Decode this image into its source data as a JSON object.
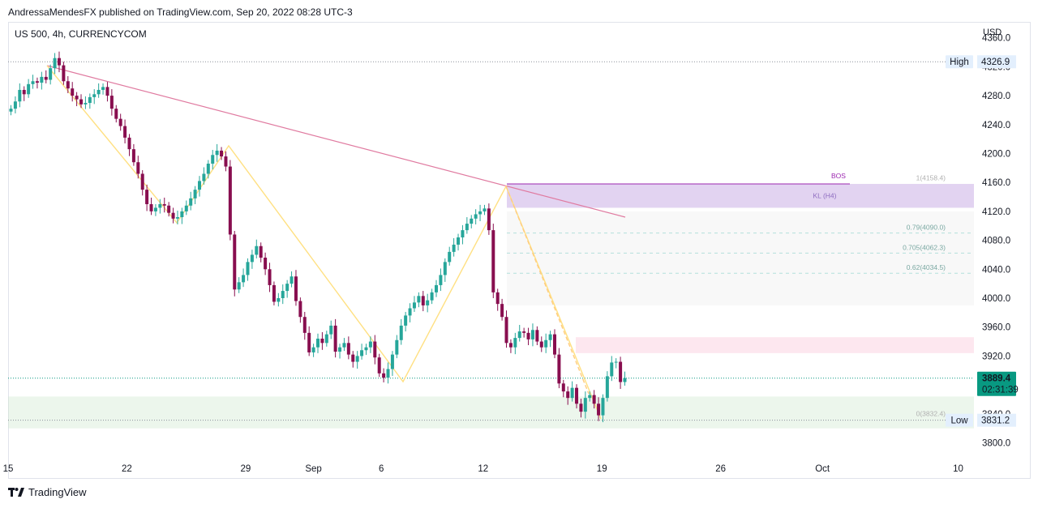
{
  "header": {
    "published": "AndressaMendesFX published on TradingView.com, Sep 20, 2022 08:28 UTC-3",
    "symbol": "US 500, 4h, CURRENCYCOM",
    "currency": "USD"
  },
  "footer": {
    "brand": "TradingView"
  },
  "colors": {
    "up": "#26a69a",
    "down": "#880e4f",
    "zigzag": "#ffe082",
    "trendline": "#e07aa0",
    "price_label_bg": "#089981"
  },
  "chart_data": {
    "type": "candlestick",
    "ylim": [
      3775,
      4360
    ],
    "yticks": [
      3800,
      3840,
      3880,
      3920,
      3960,
      4000,
      4040,
      4080,
      4120,
      4160,
      4200,
      4240,
      4280,
      4320,
      4360
    ],
    "ytick_labels": [
      "3800.0",
      "3840.0",
      "3880.0",
      "3920.0",
      "3960.0",
      "4000.0",
      "4040.0",
      "4080.0",
      "4120.0",
      "4160.0",
      "4200.0",
      "4240.0",
      "4280.0",
      "4320.0",
      "4360.0"
    ],
    "xticks": [
      {
        "label": "15",
        "day": 0
      },
      {
        "label": "22",
        "day": 7
      },
      {
        "label": "29",
        "day": 14
      },
      {
        "label": "Sep",
        "day": 18
      },
      {
        "label": "6",
        "day": 22
      },
      {
        "label": "12",
        "day": 28
      },
      {
        "label": "19",
        "day": 35
      },
      {
        "label": "26",
        "day": 42
      },
      {
        "label": "Oct",
        "day": 48
      },
      {
        "label": "10",
        "day": 56
      }
    ],
    "closes": [
      4262,
      4272,
      4288,
      4282,
      4296,
      4300,
      4298,
      4306,
      4302,
      4318,
      4332,
      4322,
      4300,
      4290,
      4280,
      4275,
      4268,
      4270,
      4278,
      4282,
      4288,
      4292,
      4280,
      4262,
      4248,
      4238,
      4222,
      4206,
      4188,
      4172,
      4150,
      4130,
      4120,
      4125,
      4130,
      4128,
      4118,
      4110,
      4112,
      4120,
      4128,
      4138,
      4150,
      4162,
      4172,
      4186,
      4198,
      4204,
      4196,
      4182,
      4088,
      4012,
      4022,
      4032,
      4050,
      4060,
      4072,
      4056,
      4040,
      4018,
      3995,
      4000,
      4010,
      4020,
      4030,
      3996,
      3974,
      3952,
      3925,
      3932,
      3944,
      3938,
      3950,
      3962,
      3926,
      3932,
      3938,
      3922,
      3912,
      3920,
      3928,
      3932,
      3940,
      3918,
      3896,
      3890,
      3902,
      3922,
      3942,
      3962,
      3976,
      3986,
      3994,
      4003,
      3990,
      3997,
      4008,
      4018,
      4032,
      4050,
      4064,
      4074,
      4084,
      4094,
      4103,
      4110,
      4116,
      4120,
      4124,
      4094,
      4008,
      3992,
      3974,
      3938,
      3932,
      3945,
      3954,
      3952,
      3943,
      3956,
      3940,
      3932,
      3942,
      3950,
      3922,
      3882,
      3871,
      3862,
      3876,
      3854,
      3843,
      3862,
      3866,
      3854,
      3838,
      3862,
      3892,
      3911,
      3912,
      3884,
      3889.4
    ],
    "current_price": "3889.4",
    "countdown": "02:31:39",
    "high": {
      "label": "High",
      "value": "4326.9"
    },
    "low": {
      "label": "Low",
      "value": "3831.2"
    },
    "zones": [
      {
        "label": "KL (H4)",
        "from": 4125,
        "to": 4158
      },
      {
        "label": "",
        "from": 3924,
        "to": 3946
      },
      {
        "label": "",
        "from": 3820,
        "to": 3864
      }
    ],
    "bos": {
      "label": "BOS",
      "value": 4158
    },
    "fib_levels": [
      {
        "label": "1(4158.4)",
        "value": 4158.4
      },
      {
        "label": "0.79(4090.0)",
        "value": 4090.0
      },
      {
        "label": "0.705(4062.3)",
        "value": 4062.3
      },
      {
        "label": "0.62(4034.5)",
        "value": 4034.5
      },
      {
        "label": "0(3832.4)",
        "value": 3832.4
      }
    ]
  }
}
